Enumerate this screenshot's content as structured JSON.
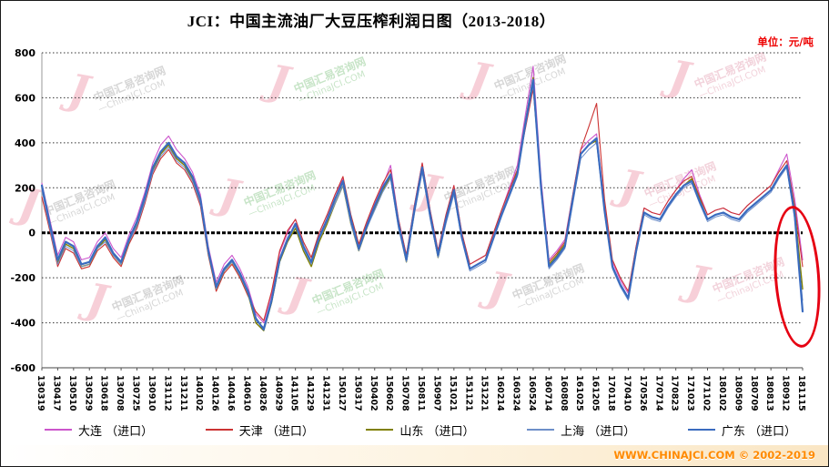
{
  "header": {
    "title": "JCI：中国主流油厂大豆压榨利润日图（2013-2018）",
    "unit_label": "单位：元/吨"
  },
  "chart_data": {
    "type": "line",
    "title": "JCI：中国主流油厂大豆压榨利润日图（2013-2018）",
    "ylabel": "元/吨",
    "ylim": [
      -600,
      800
    ],
    "y_ticks": [
      800,
      600,
      400,
      200,
      0,
      -200,
      -400,
      -600
    ],
    "grid": "dotted-horizontal",
    "zero_line": 0,
    "legend_position": "bottom",
    "samples_per_interval": 2,
    "categories": [
      "130319",
      "130417",
      "130510",
      "130529",
      "130618",
      "130708",
      "130725",
      "130910",
      "131112",
      "131211",
      "140102",
      "140126",
      "140416",
      "140610",
      "140826",
      "140929",
      "141105",
      "141229",
      "141231",
      "150127",
      "150317",
      "150402",
      "150602",
      "150708",
      "150811",
      "150907",
      "151021",
      "151121",
      "151221",
      "160214",
      "160324",
      "160524",
      "160714",
      "160808",
      "161025",
      "161205",
      "170118",
      "170410",
      "170526",
      "170714",
      "170823",
      "171023",
      "171102",
      "180102",
      "180509",
      "180709",
      "180813",
      "180912",
      "181115"
    ],
    "series": [
      {
        "name": "大连 （进口）",
        "color": "#cc55cc",
        "width": 1.1,
        "values": [
          220,
          60,
          -100,
          -20,
          -40,
          -120,
          -110,
          -40,
          0,
          -70,
          -110,
          -10,
          70,
          180,
          310,
          390,
          430,
          370,
          330,
          270,
          170,
          -60,
          -220,
          -140,
          -100,
          -160,
          -240,
          -360,
          -400,
          -270,
          -90,
          0,
          60,
          -40,
          -110,
          0,
          80,
          170,
          240,
          70,
          -60,
          40,
          130,
          210,
          300,
          60,
          -100,
          120,
          310,
          100,
          -80,
          80,
          210,
          0,
          -140,
          -120,
          -100,
          0,
          100,
          200,
          300,
          520,
          740,
          240,
          -120,
          -80,
          -30,
          170,
          370,
          410,
          440,
          120,
          -130,
          -210,
          -270,
          -60,
          110,
          90,
          80,
          140,
          190,
          240,
          280,
          170,
          80,
          100,
          110,
          90,
          80,
          120,
          150,
          180,
          210,
          280,
          350,
          150,
          -120
        ]
      },
      {
        "name": "天津 （进口）",
        "color": "#cc3333",
        "width": 1.1,
        "values": [
          160,
          10,
          -150,
          -70,
          -90,
          -160,
          -150,
          -80,
          -50,
          -110,
          -150,
          -50,
          20,
          130,
          260,
          330,
          370,
          310,
          280,
          220,
          120,
          -100,
          -260,
          -180,
          -140,
          -200,
          -280,
          -350,
          -390,
          -260,
          -80,
          10,
          60,
          -40,
          -110,
          0,
          80,
          170,
          250,
          80,
          -50,
          50,
          140,
          220,
          280,
          60,
          -100,
          120,
          310,
          100,
          -80,
          80,
          210,
          0,
          -140,
          -120,
          -100,
          0,
          100,
          190,
          280,
          460,
          640,
          220,
          -130,
          -90,
          -40,
          170,
          370,
          470,
          575,
          150,
          -120,
          -200,
          -260,
          -60,
          110,
          90,
          80,
          140,
          190,
          230,
          250,
          160,
          80,
          100,
          110,
          90,
          80,
          120,
          150,
          180,
          210,
          270,
          320,
          120,
          -150
        ]
      },
      {
        "name": "山东 （进口）",
        "color": "#808000",
        "width": 1.4,
        "values": [
          200,
          30,
          -130,
          -50,
          -70,
          -150,
          -140,
          -70,
          -30,
          -100,
          -140,
          -40,
          40,
          150,
          280,
          350,
          390,
          330,
          300,
          240,
          140,
          -90,
          -250,
          -170,
          -130,
          -190,
          -270,
          -400,
          -435,
          -310,
          -130,
          -40,
          20,
          -80,
          -150,
          -40,
          40,
          130,
          210,
          40,
          -80,
          20,
          110,
          190,
          250,
          30,
          -130,
          90,
          280,
          70,
          -110,
          50,
          180,
          -20,
          -160,
          -140,
          -120,
          -20,
          80,
          170,
          270,
          490,
          690,
          200,
          -140,
          -100,
          -50,
          150,
          350,
          390,
          410,
          100,
          -150,
          -230,
          -290,
          -80,
          90,
          70,
          60,
          120,
          170,
          210,
          240,
          150,
          60,
          80,
          90,
          70,
          60,
          100,
          130,
          160,
          190,
          250,
          300,
          100,
          -250
        ]
      },
      {
        "name": "上海 （进口）",
        "color": "#6e8fc9",
        "width": 1.0,
        "values": [
          190,
          20,
          -140,
          -60,
          -80,
          -150,
          -140,
          -70,
          -40,
          -100,
          -140,
          -40,
          30,
          140,
          270,
          340,
          380,
          320,
          290,
          230,
          130,
          -90,
          -250,
          -170,
          -130,
          -190,
          -270,
          -390,
          -420,
          -290,
          -110,
          -20,
          30,
          -70,
          -140,
          -30,
          50,
          130,
          210,
          40,
          -80,
          20,
          100,
          180,
          240,
          20,
          -130,
          80,
          270,
          60,
          -110,
          40,
          170,
          -30,
          -170,
          -150,
          -130,
          -30,
          70,
          160,
          250,
          470,
          660,
          180,
          -160,
          -120,
          -70,
          130,
          330,
          370,
          400,
          90,
          -160,
          -240,
          -300,
          -90,
          80,
          60,
          50,
          110,
          160,
          200,
          220,
          130,
          50,
          70,
          80,
          60,
          50,
          90,
          120,
          150,
          180,
          240,
          290,
          60,
          -300
        ]
      },
      {
        "name": "广东 （进口）",
        "color": "#3a6bbf",
        "width": 2.2,
        "values": [
          210,
          40,
          -120,
          -40,
          -60,
          -140,
          -130,
          -60,
          -20,
          -90,
          -130,
          -30,
          50,
          160,
          290,
          360,
          400,
          340,
          310,
          250,
          150,
          -80,
          -240,
          -160,
          -120,
          -180,
          -260,
          -380,
          -430,
          -300,
          -120,
          -30,
          40,
          -60,
          -130,
          -20,
          60,
          150,
          230,
          60,
          -70,
          30,
          120,
          200,
          260,
          40,
          -120,
          100,
          290,
          80,
          -100,
          60,
          190,
          -20,
          -160,
          -140,
          -120,
          -20,
          80,
          170,
          260,
          480,
          680,
          200,
          -150,
          -110,
          -60,
          150,
          350,
          390,
          420,
          100,
          -150,
          -230,
          -290,
          -80,
          90,
          70,
          60,
          120,
          170,
          210,
          230,
          140,
          60,
          80,
          90,
          70,
          60,
          100,
          130,
          160,
          190,
          250,
          300,
          80,
          -350
        ]
      }
    ]
  },
  "watermark": {
    "logo_glyph": "J",
    "line1": "中国汇易咨询网",
    "line2": "—ChinaJCI.COM"
  },
  "annotation": {
    "shape": "ellipse",
    "color": "#e60012"
  },
  "footer": {
    "text": "WWW.CHINAJCI.COM © 2002-2019"
  }
}
